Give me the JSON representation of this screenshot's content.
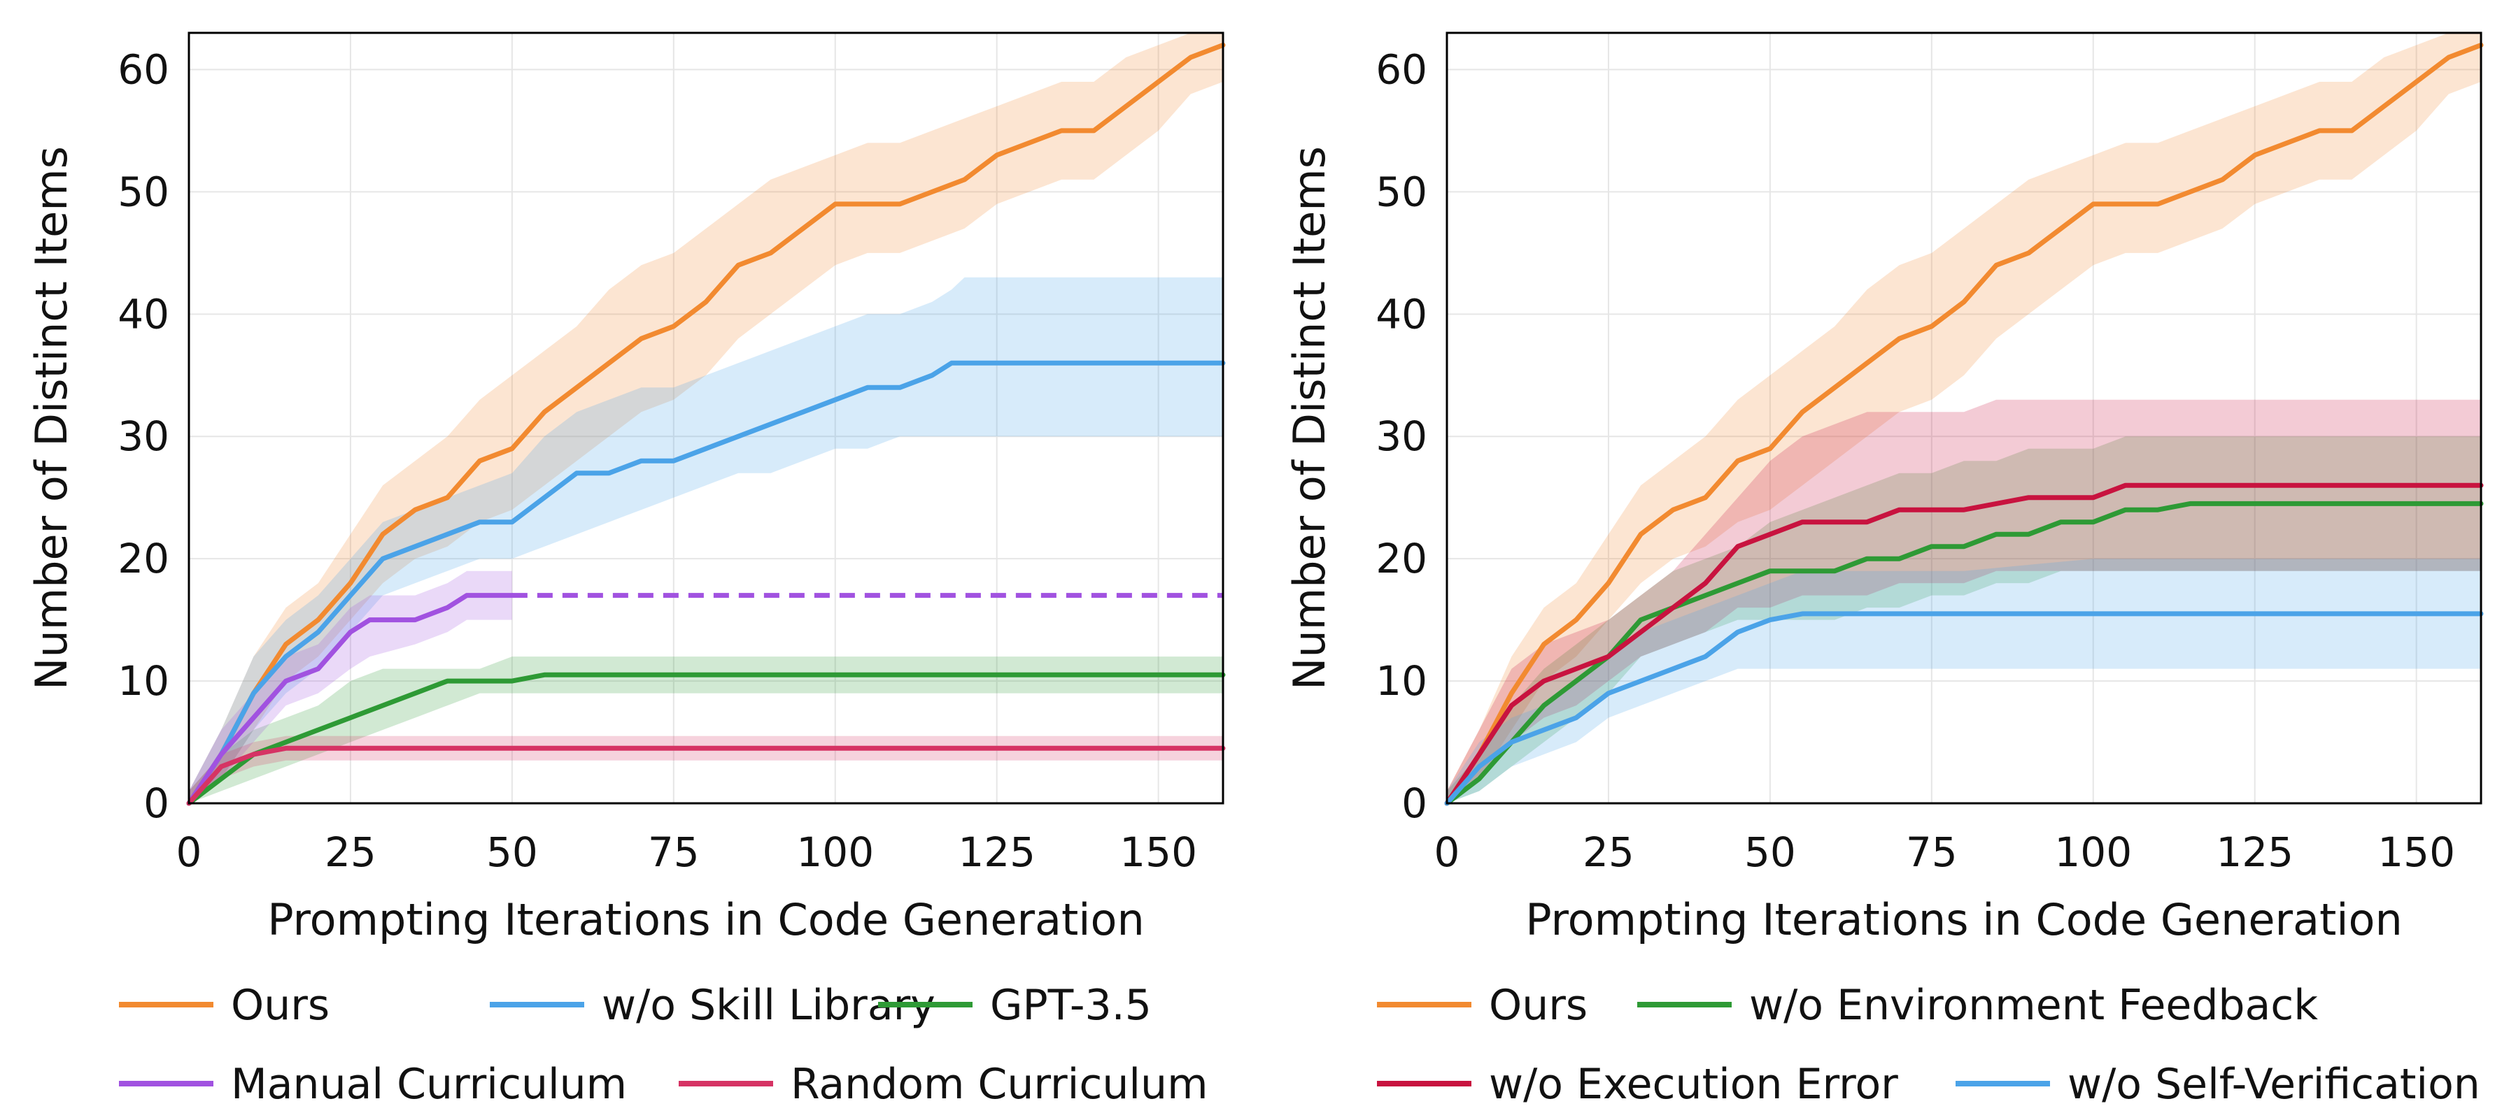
{
  "chart_data": [
    {
      "type": "line",
      "xlabel": "Prompting Iterations in Code Generation",
      "ylabel": "Number of Distinct Items",
      "xlim": [
        0,
        160
      ],
      "ylim": [
        0,
        63
      ],
      "xticks": [
        0,
        25,
        50,
        75,
        100,
        125,
        150
      ],
      "yticks": [
        0,
        10,
        20,
        30,
        40,
        50,
        60
      ],
      "grid": true,
      "legend_position": "bottom",
      "series": [
        {
          "name": "Ours",
          "color": "#F28A30",
          "x": [
            0,
            5,
            10,
            15,
            20,
            25,
            30,
            35,
            40,
            45,
            50,
            55,
            60,
            65,
            70,
            75,
            80,
            85,
            90,
            95,
            100,
            105,
            110,
            115,
            120,
            125,
            130,
            135,
            140,
            145,
            150,
            155,
            160
          ],
          "y": [
            0,
            4,
            9,
            13,
            15,
            18,
            22,
            24,
            25,
            28,
            29,
            32,
            34,
            36,
            38,
            39,
            41,
            44,
            45,
            47,
            49,
            49,
            49,
            50,
            51,
            53,
            54,
            55,
            55,
            57,
            59,
            61,
            62
          ],
          "lower": [
            0,
            2,
            6,
            10,
            12,
            15,
            18,
            20,
            21,
            23,
            24,
            26,
            28,
            30,
            32,
            33,
            35,
            38,
            40,
            42,
            44,
            45,
            45,
            46,
            47,
            49,
            50,
            51,
            51,
            53,
            55,
            58,
            59
          ],
          "upper": [
            1,
            6,
            12,
            16,
            18,
            22,
            26,
            28,
            30,
            33,
            35,
            37,
            39,
            42,
            44,
            45,
            47,
            49,
            51,
            52,
            53,
            54,
            54,
            55,
            56,
            57,
            58,
            59,
            59,
            61,
            62,
            63,
            63
          ]
        },
        {
          "name": "w/o Skill Library",
          "color": "#4BA3E8",
          "x": [
            0,
            5,
            10,
            15,
            20,
            25,
            30,
            35,
            40,
            45,
            50,
            55,
            60,
            65,
            70,
            75,
            80,
            85,
            90,
            95,
            100,
            105,
            110,
            115,
            118,
            120,
            125,
            140,
            160
          ],
          "y": [
            0,
            4,
            9,
            12,
            14,
            17,
            20,
            21,
            22,
            23,
            23,
            25,
            27,
            27,
            28,
            28,
            29,
            30,
            31,
            32,
            33,
            34,
            34,
            35,
            36,
            36,
            36,
            36,
            36
          ],
          "lower": [
            0,
            2,
            6,
            9,
            11,
            14,
            17,
            18,
            19,
            20,
            20,
            21,
            22,
            23,
            24,
            25,
            26,
            27,
            27,
            28,
            29,
            29,
            30,
            30,
            30,
            30,
            30,
            30,
            30
          ],
          "upper": [
            1,
            6,
            12,
            15,
            17,
            20,
            23,
            24,
            25,
            26,
            27,
            30,
            32,
            33,
            34,
            34,
            35,
            36,
            37,
            38,
            39,
            40,
            40,
            41,
            42,
            43,
            43,
            43,
            43
          ]
        },
        {
          "name": "GPT-3.5",
          "color": "#2E9A35",
          "x": [
            0,
            5,
            10,
            15,
            20,
            25,
            30,
            35,
            40,
            45,
            50,
            55,
            60,
            80,
            100,
            120,
            140,
            160
          ],
          "y": [
            0,
            2,
            4,
            5,
            6,
            7,
            8,
            9,
            10,
            10,
            10,
            10.5,
            10.5,
            10.5,
            10.5,
            10.5,
            10.5,
            10.5
          ],
          "lower": [
            0,
            1,
            2,
            3,
            4,
            5,
            6,
            7,
            8,
            9,
            9,
            9,
            9,
            9,
            9,
            9,
            9,
            9
          ],
          "upper": [
            1,
            4,
            6,
            7,
            8,
            10,
            11,
            11,
            11,
            11,
            12,
            12,
            12,
            12,
            12,
            12,
            12,
            12
          ]
        },
        {
          "name": "Manual Curriculum",
          "color": "#A152E0",
          "x": [
            0,
            5,
            10,
            15,
            20,
            25,
            28,
            35,
            40,
            43,
            48,
            50
          ],
          "y": [
            0,
            4,
            7,
            10,
            11,
            14,
            15,
            15,
            16,
            17,
            17,
            17
          ],
          "lower": [
            0,
            2,
            5,
            8,
            9,
            11,
            12,
            13,
            14,
            15,
            15,
            15
          ],
          "upper": [
            1,
            6,
            9,
            12,
            13,
            16,
            17,
            17,
            18,
            19,
            19,
            19
          ],
          "extension": {
            "from": 50,
            "to": 160,
            "y": 17,
            "style": "dashed"
          }
        },
        {
          "name": "Random Curriculum",
          "color": "#D63364",
          "x": [
            0,
            5,
            10,
            15,
            20,
            40,
            60,
            80,
            100,
            120,
            140,
            160
          ],
          "y": [
            0,
            3,
            4,
            4.5,
            4.5,
            4.5,
            4.5,
            4.5,
            4.5,
            4.5,
            4.5,
            4.5
          ],
          "lower": [
            0,
            2,
            3,
            3.5,
            3.5,
            3.5,
            3.5,
            3.5,
            3.5,
            3.5,
            3.5,
            3.5
          ],
          "upper": [
            1,
            4,
            5,
            5.5,
            5.5,
            5.5,
            5.5,
            5.5,
            5.5,
            5.5,
            5.5,
            5.5
          ]
        }
      ],
      "legend": {
        "row1": [
          {
            "label": "Ours",
            "color": "#F28A30"
          },
          {
            "label": "w/o Skill Library",
            "color": "#4BA3E8"
          },
          {
            "label": "GPT-3.5",
            "color": "#2E9A35"
          }
        ],
        "row2": [
          {
            "label": "Manual Curriculum",
            "color": "#A152E0"
          },
          {
            "label": "Random Curriculum",
            "color": "#D63364"
          }
        ]
      }
    },
    {
      "type": "line",
      "xlabel": "Prompting Iterations in Code Generation",
      "ylabel": "Number of Distinct Items",
      "xlim": [
        0,
        160
      ],
      "ylim": [
        0,
        63
      ],
      "xticks": [
        0,
        25,
        50,
        75,
        100,
        125,
        150
      ],
      "yticks": [
        0,
        10,
        20,
        30,
        40,
        50,
        60
      ],
      "grid": true,
      "legend_position": "bottom",
      "series": [
        {
          "name": "Ours",
          "color": "#F28A30",
          "x": [
            0,
            5,
            10,
            15,
            20,
            25,
            30,
            35,
            40,
            45,
            50,
            55,
            60,
            65,
            70,
            75,
            80,
            85,
            90,
            95,
            100,
            105,
            110,
            115,
            120,
            125,
            130,
            135,
            140,
            145,
            150,
            155,
            160
          ],
          "y": [
            0,
            4,
            9,
            13,
            15,
            18,
            22,
            24,
            25,
            28,
            29,
            32,
            34,
            36,
            38,
            39,
            41,
            44,
            45,
            47,
            49,
            49,
            49,
            50,
            51,
            53,
            54,
            55,
            55,
            57,
            59,
            61,
            62
          ],
          "lower": [
            0,
            2,
            6,
            10,
            12,
            15,
            18,
            20,
            21,
            23,
            24,
            26,
            28,
            30,
            32,
            33,
            35,
            38,
            40,
            42,
            44,
            45,
            45,
            46,
            47,
            49,
            50,
            51,
            51,
            53,
            55,
            58,
            59
          ],
          "upper": [
            1,
            6,
            12,
            16,
            18,
            22,
            26,
            28,
            30,
            33,
            35,
            37,
            39,
            42,
            44,
            45,
            47,
            49,
            51,
            52,
            53,
            54,
            54,
            55,
            56,
            57,
            58,
            59,
            59,
            61,
            62,
            63,
            63
          ]
        },
        {
          "name": "w/o Environment Feedback",
          "color": "#2E9A35",
          "x": [
            0,
            5,
            10,
            15,
            20,
            25,
            30,
            35,
            40,
            45,
            50,
            55,
            60,
            65,
            70,
            75,
            80,
            85,
            90,
            95,
            100,
            105,
            110,
            115,
            120,
            140,
            160
          ],
          "y": [
            0,
            2,
            5,
            8,
            10,
            12,
            15,
            16,
            17,
            18,
            19,
            19,
            19,
            20,
            20,
            21,
            21,
            22,
            22,
            23,
            23,
            24,
            24,
            24.5,
            24.5,
            24.5,
            24.5
          ],
          "lower": [
            0,
            1,
            3,
            5,
            7,
            9,
            12,
            13,
            14,
            15,
            15,
            15,
            15,
            16,
            16,
            17,
            17,
            18,
            18,
            19,
            19,
            19,
            19,
            19,
            19,
            19,
            19
          ],
          "upper": [
            1,
            4,
            8,
            11,
            13,
            15,
            17,
            19,
            20,
            21,
            23,
            24,
            25,
            26,
            27,
            27,
            28,
            28,
            29,
            29,
            29,
            30,
            30,
            30,
            30,
            30,
            30
          ]
        },
        {
          "name": "w/o Execution Error",
          "color": "#C8133F",
          "x": [
            0,
            5,
            10,
            15,
            20,
            25,
            30,
            35,
            40,
            45,
            50,
            55,
            60,
            65,
            70,
            75,
            80,
            85,
            90,
            95,
            100,
            105,
            110,
            120,
            140,
            160
          ],
          "y": [
            0,
            4,
            8,
            10,
            11,
            12,
            14,
            16,
            18,
            21,
            22,
            23,
            23,
            23,
            24,
            24,
            24,
            24.5,
            25,
            25,
            25,
            26,
            26,
            26,
            26,
            26
          ],
          "lower": [
            0,
            2,
            5,
            7,
            8,
            10,
            12,
            13,
            14,
            16,
            16,
            17,
            17,
            17,
            18,
            18,
            18,
            19,
            19,
            19,
            19,
            19,
            19,
            19,
            19,
            19
          ],
          "upper": [
            1,
            6,
            11,
            13,
            14,
            15,
            17,
            19,
            22,
            25,
            28,
            30,
            31,
            32,
            32,
            32,
            32,
            33,
            33,
            33,
            33,
            33,
            33,
            33,
            33,
            33
          ]
        },
        {
          "name": "w/o Self-Verification",
          "color": "#4BA3E8",
          "x": [
            0,
            5,
            10,
            15,
            20,
            25,
            30,
            35,
            40,
            45,
            50,
            55,
            60,
            80,
            100,
            120,
            140,
            160
          ],
          "y": [
            0,
            3,
            5,
            6,
            7,
            9,
            10,
            11,
            12,
            14,
            15,
            15.5,
            15.5,
            15.5,
            15.5,
            15.5,
            15.5,
            15.5
          ],
          "lower": [
            0,
            1,
            3,
            4,
            5,
            7,
            8,
            9,
            10,
            11,
            11,
            11,
            11,
            11,
            11,
            11,
            11,
            11
          ],
          "upper": [
            1,
            5,
            7,
            8,
            10,
            12,
            14,
            15,
            16,
            17,
            18,
            19,
            19,
            19,
            20,
            20,
            20,
            20
          ]
        }
      ],
      "legend": {
        "row1": [
          {
            "label": "Ours",
            "color": "#F28A30"
          },
          {
            "label": "w/o Environment Feedback",
            "color": "#2E9A35"
          }
        ],
        "row2": [
          {
            "label": "w/o Execution Error",
            "color": "#C8133F"
          },
          {
            "label": "w/o Self-Verification",
            "color": "#4BA3E8"
          }
        ]
      }
    }
  ]
}
